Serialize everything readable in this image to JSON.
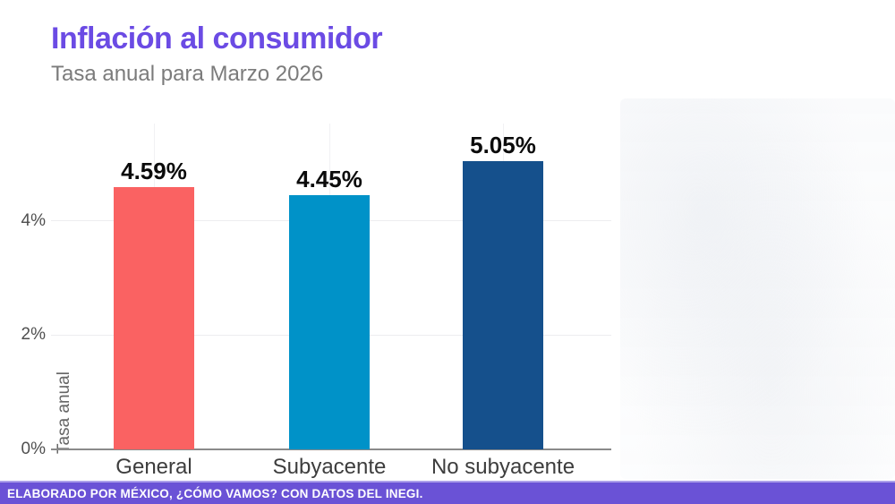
{
  "header": {
    "title": "Inflación al consumidor",
    "subtitle": "Tasa anual para Marzo 2026"
  },
  "footer": {
    "credit": "ELABORADO POR MÉXICO, ¿CÓMO VAMOS? CON DATOS DEL INEGI."
  },
  "colors": {
    "title": "#6B4BE4",
    "subtitle_text": "#7B7B7B",
    "footer_bg": "#6A52D6",
    "footer_border": "#ACA0EA",
    "bar_general": "#FA6262",
    "bar_subyacente": "#0092C8",
    "bar_no_subyacente": "#15508C",
    "gridline": "#EDEDF0",
    "axis_line": "#8A8A8A"
  },
  "chart_data": {
    "type": "bar",
    "title": "Inflación al consumidor",
    "subtitle": "Tasa anual para Marzo 2026",
    "categories": [
      "General",
      "Subyacente",
      "No subyacente"
    ],
    "values": [
      4.59,
      4.45,
      5.05
    ],
    "value_labels": [
      "4.59%",
      "4.45%",
      "5.05%"
    ],
    "bar_colors": [
      "#FA6262",
      "#0092C8",
      "#15508C"
    ],
    "xlabel": "",
    "ylabel": "Tasa anual",
    "ylim": [
      0,
      5.7
    ],
    "ytick_values": [
      0,
      2,
      4
    ],
    "ytick_labels": [
      "0%",
      "2%",
      "4%"
    ],
    "grid": true,
    "legend": "none",
    "source_note": "ELABORADO POR MÉXICO, ¿CÓMO VAMOS? CON DATOS DEL INEGI."
  }
}
